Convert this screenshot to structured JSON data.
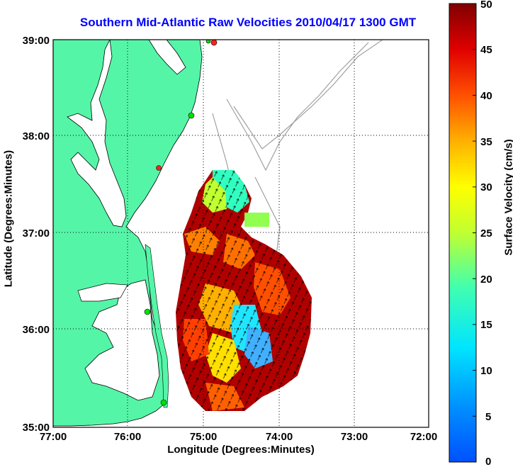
{
  "title": "Southern Mid-Atlantic Raw Velocities 2010/04/17 1300 GMT",
  "axes": {
    "xlabel": "Longitude (Degrees:Minutes)",
    "ylabel": "Latitude (Degrees:Minutes)",
    "x_ticks": [
      "77:00",
      "76:00",
      "75:00",
      "74:00",
      "73:00",
      "72:00"
    ],
    "y_ticks": [
      "39:00",
      "38:00",
      "37:00",
      "36:00",
      "35:00"
    ],
    "grid": "dotted"
  },
  "colorbar": {
    "label": "Surface Velocity (cm/s)",
    "ticks": [
      "50",
      "45",
      "40",
      "35",
      "30",
      "25",
      "20",
      "15",
      "10",
      "5",
      "0"
    ],
    "range": [
      0,
      50
    ],
    "units": "cm/s"
  },
  "colors": {
    "title": "#0000ff",
    "land": "#55f5a8",
    "coastline": "#000000",
    "bathymetry": "#999999",
    "station_active": "#00e000",
    "station_inactive": "#ff2020"
  }
}
